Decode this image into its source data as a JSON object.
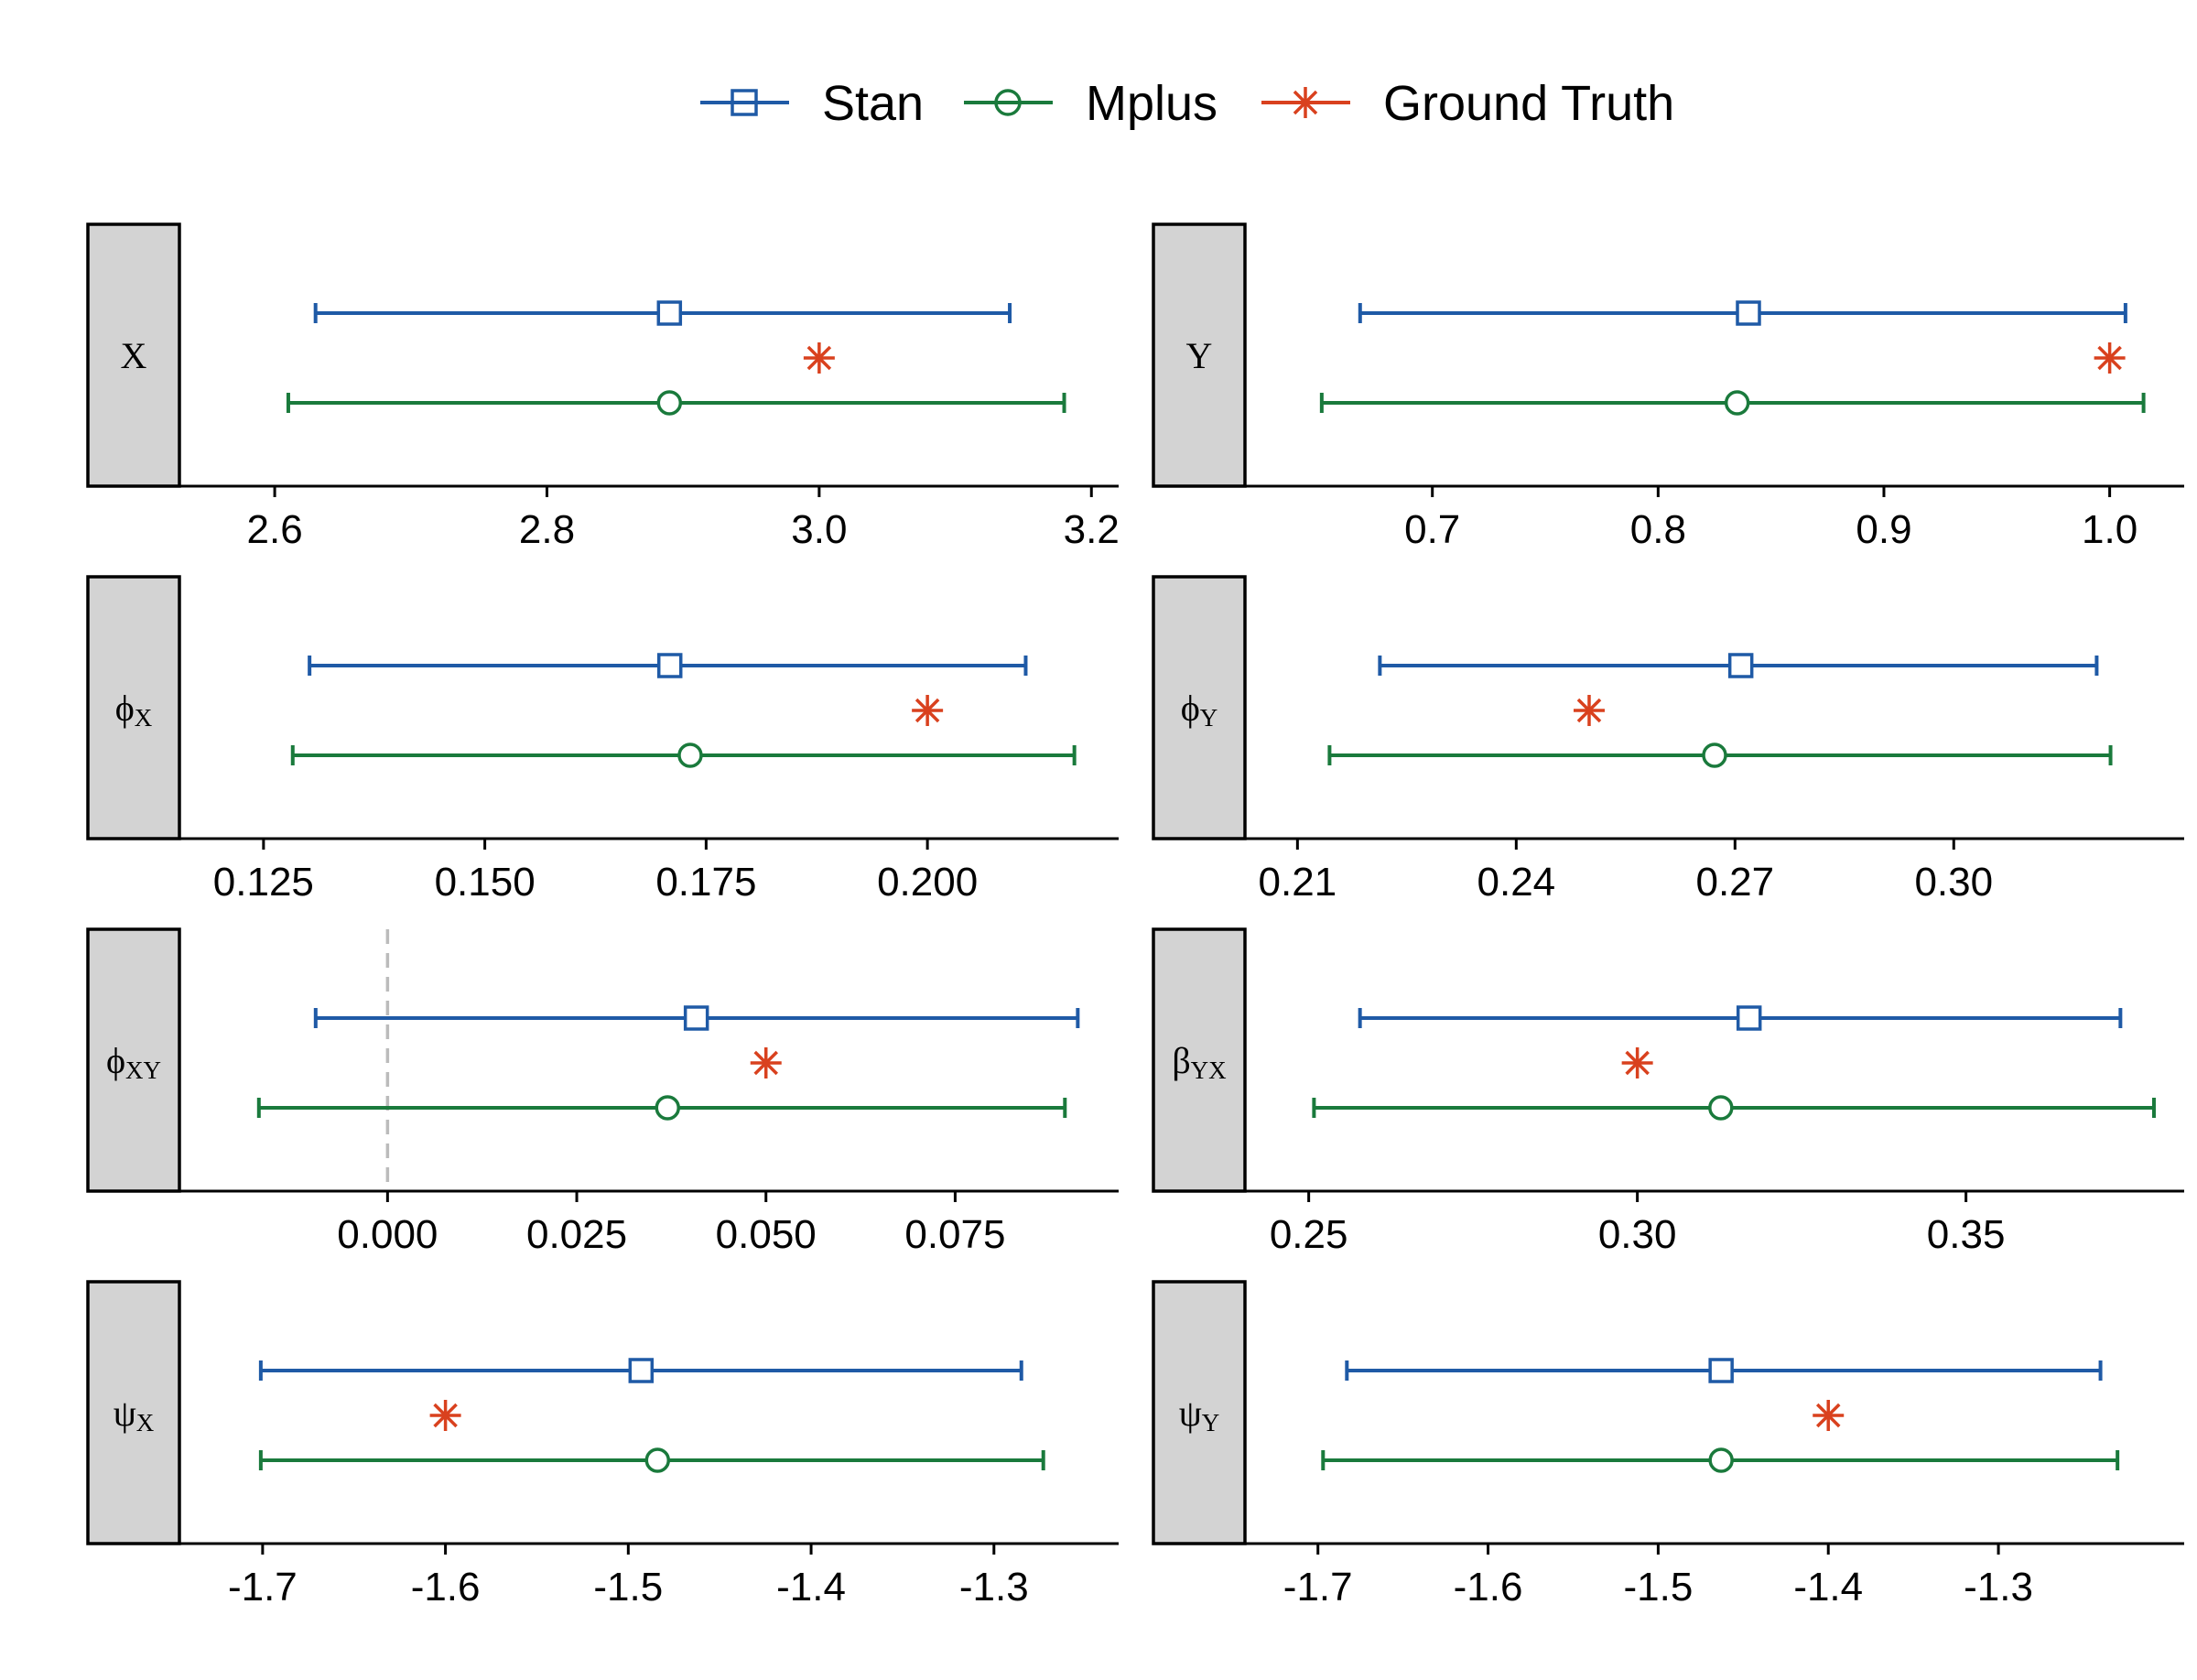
{
  "colors": {
    "stan": "#1F5AA6",
    "mplus": "#1A7A3C",
    "truth": "#D9411E",
    "strip_fill": "#D3D3D3",
    "zero_line": "#BBBBBB"
  },
  "legend": {
    "stan": "Stan",
    "mplus": "Mplus",
    "truth": "Ground Truth"
  },
  "chart_data": [
    {
      "type": "forest",
      "panel": "X",
      "label": {
        "main": "X",
        "sub": ""
      },
      "xlim": [
        2.53,
        3.22
      ],
      "ticks": [
        2.6,
        2.8,
        3.0,
        3.2
      ],
      "tick_labels": [
        "2.6",
        "2.8",
        "3.0",
        "3.2"
      ],
      "stan": {
        "lower": 2.63,
        "estimate": 2.89,
        "upper": 3.14
      },
      "mplus": {
        "lower": 2.61,
        "estimate": 2.89,
        "upper": 3.18
      },
      "truth": 3.0
    },
    {
      "type": "forest",
      "panel": "Y",
      "label": {
        "main": "Y",
        "sub": ""
      },
      "xlim": [
        0.617,
        1.033
      ],
      "ticks": [
        0.7,
        0.8,
        0.9,
        1.0
      ],
      "tick_labels": [
        "0.7",
        "0.8",
        "0.9",
        "1.0"
      ],
      "stan": {
        "lower": 0.668,
        "estimate": 0.84,
        "upper": 1.007
      },
      "mplus": {
        "lower": 0.651,
        "estimate": 0.835,
        "upper": 1.015
      },
      "truth": 1.0
    },
    {
      "type": "forest",
      "panel": "phi_X",
      "label": {
        "main": "ϕ",
        "sub": "X"
      },
      "xlim": [
        0.1155,
        0.2216
      ],
      "ticks": [
        0.125,
        0.15,
        0.175,
        0.2
      ],
      "tick_labels": [
        "0.125",
        "0.150",
        "0.175",
        "0.200"
      ],
      "stan": {
        "lower": 0.1302,
        "estimate": 0.1709,
        "upper": 0.2111
      },
      "mplus": {
        "lower": 0.1283,
        "estimate": 0.1732,
        "upper": 0.2166
      },
      "truth": 0.2
    },
    {
      "type": "forest",
      "panel": "phi_Y",
      "label": {
        "main": "ϕ",
        "sub": "Y"
      },
      "xlim": [
        0.2028,
        0.3316
      ],
      "ticks": [
        0.21,
        0.24,
        0.27,
        0.3
      ],
      "tick_labels": [
        "0.21",
        "0.24",
        "0.27",
        "0.30"
      ],
      "stan": {
        "lower": 0.2213,
        "estimate": 0.2708,
        "upper": 0.3196
      },
      "mplus": {
        "lower": 0.2144,
        "estimate": 0.2672,
        "upper": 0.3215
      },
      "truth": 0.25
    },
    {
      "type": "forest",
      "panel": "phi_XY",
      "label": {
        "main": "ϕ",
        "sub": "XY"
      },
      "xlim": [
        -0.0275,
        0.0966
      ],
      "ticks": [
        0.0,
        0.025,
        0.05,
        0.075
      ],
      "tick_labels": [
        "0.000",
        "0.025",
        "0.050",
        "0.075"
      ],
      "zero_line": 0.0,
      "stan": {
        "lower": -0.0095,
        "estimate": 0.0408,
        "upper": 0.0912
      },
      "mplus": {
        "lower": -0.017,
        "estimate": 0.037,
        "upper": 0.0895
      },
      "truth": 0.05
    },
    {
      "type": "forest",
      "panel": "beta_YX",
      "label": {
        "main": "β",
        "sub": "YX"
      },
      "xlim": [
        0.2403,
        0.3832
      ],
      "ticks": [
        0.25,
        0.3,
        0.35
      ],
      "tick_labels": [
        "0.25",
        "0.30",
        "0.35"
      ],
      "stan": {
        "lower": 0.2578,
        "estimate": 0.317,
        "upper": 0.3735
      },
      "mplus": {
        "lower": 0.2508,
        "estimate": 0.3127,
        "upper": 0.3786
      },
      "truth": 0.3
    },
    {
      "type": "forest",
      "panel": "psi_X",
      "label": {
        "main": "ψ",
        "sub": "X"
      },
      "xlim": [
        -1.7455,
        -1.2318
      ],
      "ticks": [
        -1.7,
        -1.6,
        -1.5,
        -1.4,
        -1.3
      ],
      "tick_labels": [
        "-1.7",
        "-1.6",
        "-1.5",
        "-1.4",
        "-1.3"
      ],
      "stan": {
        "lower": -1.701,
        "estimate": -1.493,
        "upper": -1.285
      },
      "mplus": {
        "lower": -1.701,
        "estimate": -1.484,
        "upper": -1.273
      },
      "truth": -1.6
    },
    {
      "type": "forest",
      "panel": "psi_Y",
      "label": {
        "main": "ψ",
        "sub": "Y"
      },
      "xlim": [
        -1.7429,
        -1.1908
      ],
      "ticks": [
        -1.7,
        -1.6,
        -1.5,
        -1.4,
        -1.3
      ],
      "tick_labels": [
        "-1.7",
        "-1.6",
        "-1.5",
        "-1.4",
        "-1.3"
      ],
      "stan": {
        "lower": -1.683,
        "estimate": -1.463,
        "upper": -1.24
      },
      "mplus": {
        "lower": -1.697,
        "estimate": -1.463,
        "upper": -1.23
      },
      "truth": -1.4
    }
  ]
}
